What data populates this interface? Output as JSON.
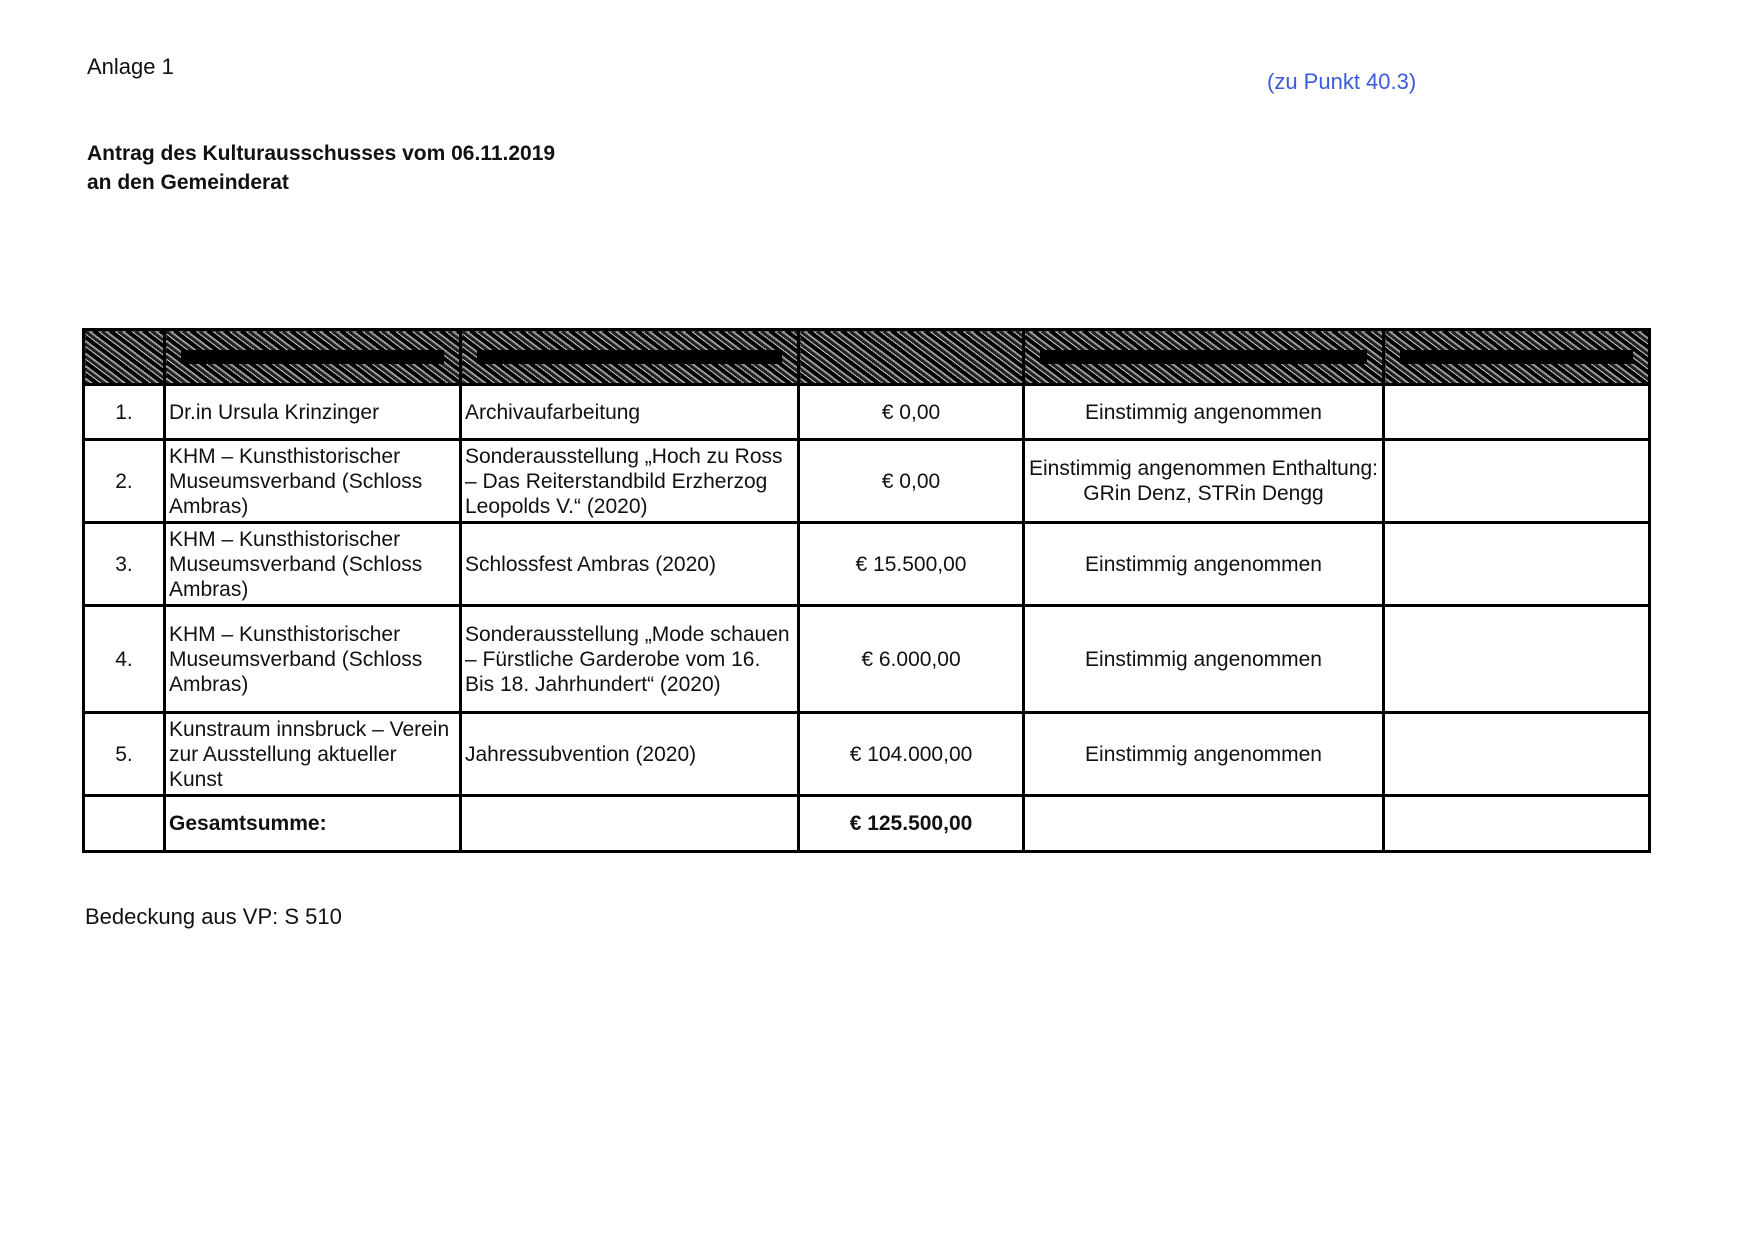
{
  "header": {
    "annex": "Anlage 1",
    "reference": "(zu Punkt 40.3)",
    "reference_color": "#3b5bdb",
    "title_line1": "Antrag des Kulturausschusses vom 06.11.2019",
    "title_line2": "an den Gemeinderat"
  },
  "table": {
    "header_redacted": true,
    "rows": [
      {
        "nr": "1.",
        "applicant": "Dr.in Ursula Krinzinger",
        "project": "Archivaufarbeitung",
        "amount": "€ 0,00",
        "decision": "Einstimmig angenommen",
        "note": ""
      },
      {
        "nr": "2.",
        "applicant": "KHM – Kunsthistorischer Museumsverband (Schloss Ambras)",
        "project": "Sonderausstellung „Hoch zu Ross – Das Reiterstandbild Erzherzog Leopolds V.“ (2020)",
        "amount": "€ 0,00",
        "decision": "Einstimmig angenommen Enthaltung: GRin Denz, STRin Dengg",
        "note": ""
      },
      {
        "nr": "3.",
        "applicant": "KHM – Kunsthistorischer Museumsverband (Schloss Ambras)",
        "project": "Schlossfest Ambras (2020)",
        "amount": "€ 15.500,00",
        "decision": "Einstimmig angenommen",
        "note": ""
      },
      {
        "nr": "4.",
        "applicant": "KHM – Kunsthistorischer Museumsverband (Schloss Ambras)",
        "project": "Sonderausstellung „Mode schauen – Fürstliche Garderobe vom 16. Bis 18. Jahrhundert“ (2020)",
        "amount": "€ 6.000,00",
        "decision": "Einstimmig angenommen",
        "note": ""
      },
      {
        "nr": "5.",
        "applicant": "Kunstraum innsbruck – Verein zur Ausstellung aktueller Kunst",
        "project": "Jahressubvention (2020)",
        "amount": "€ 104.000,00",
        "decision": "Einstimmig angenommen",
        "note": ""
      }
    ],
    "total_label": "Gesamtsumme:",
    "total_amount": "€ 125.500,00"
  },
  "footer": {
    "coverage": "Bedeckung aus VP: S 510"
  }
}
